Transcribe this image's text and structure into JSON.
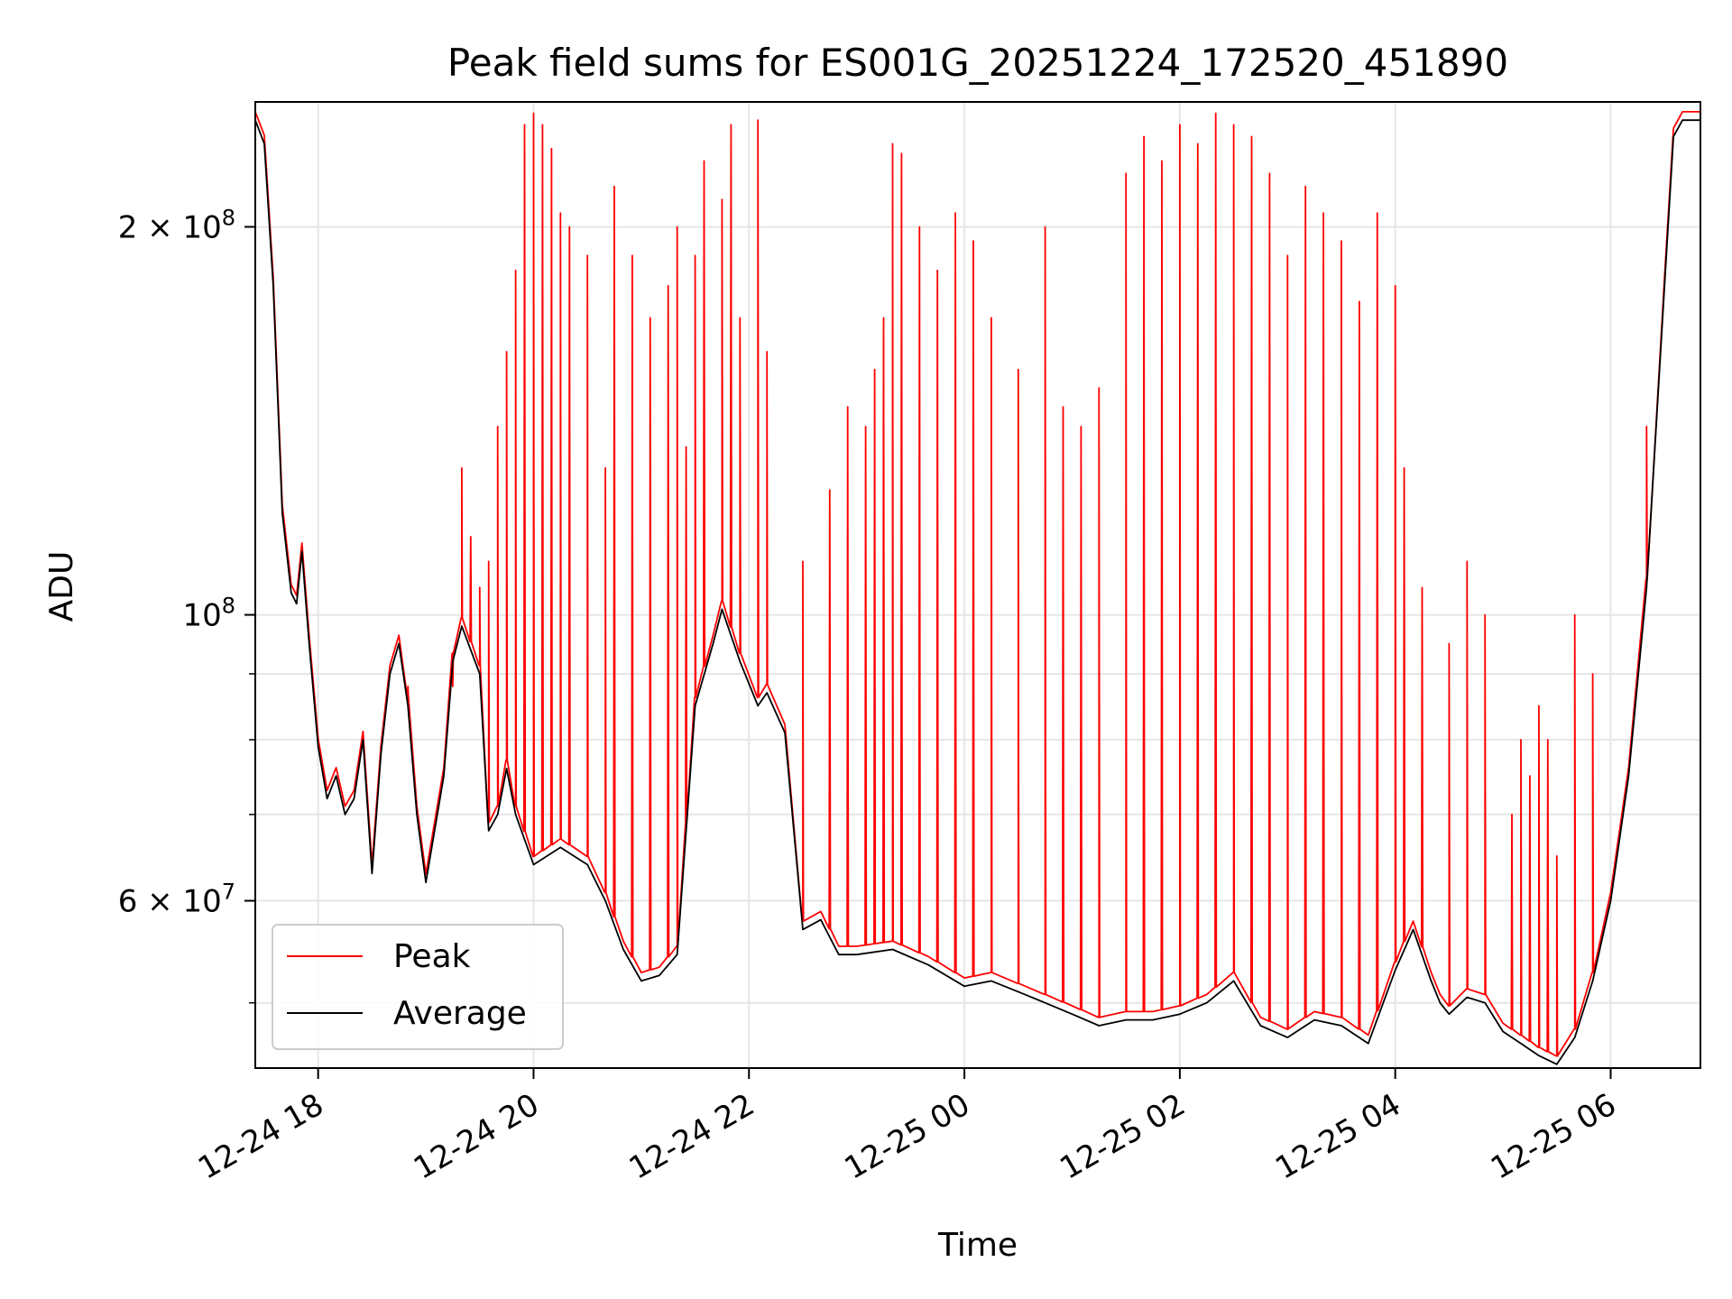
{
  "chart_data": {
    "type": "line",
    "title": "Peak field sums for ES001G_20251224_172520_451890",
    "xlabel": "Time",
    "ylabel": "ADU",
    "yscale": "log",
    "ylim": [
      44500000,
      250000000
    ],
    "xlim": [
      "2025-12-24 17:25",
      "2025-12-25 06:50"
    ],
    "grid": true,
    "legend_position": "lower-left",
    "x_ticks": [
      {
        "value": "2025-12-24 18:00",
        "label": "12-24 18"
      },
      {
        "value": "2025-12-24 20:00",
        "label": "12-24 20"
      },
      {
        "value": "2025-12-24 22:00",
        "label": "12-24 22"
      },
      {
        "value": "2025-12-25 00:00",
        "label": "12-25 00"
      },
      {
        "value": "2025-12-25 02:00",
        "label": "12-25 02"
      },
      {
        "value": "2025-12-25 04:00",
        "label": "12-25 04"
      },
      {
        "value": "2025-12-25 06:00",
        "label": "12-25 06"
      }
    ],
    "y_major_ticks": [
      {
        "value": 60000000,
        "base": "6 × 10",
        "exp": "7"
      },
      {
        "value": 100000000,
        "base": "10",
        "exp": "8"
      },
      {
        "value": 200000000,
        "base": "2 × 10",
        "exp": "8"
      }
    ],
    "y_minor_ticks": [
      50000000,
      70000000,
      80000000,
      90000000,
      300000000
    ],
    "series": [
      {
        "name": "Average",
        "color": "#000000",
        "x": [
          "2025-12-24 17:25",
          "2025-12-24 17:30",
          "2025-12-24 17:35",
          "2025-12-24 17:40",
          "2025-12-24 17:45",
          "2025-12-24 17:48",
          "2025-12-24 17:51",
          "2025-12-24 17:55",
          "2025-12-24 18:00",
          "2025-12-24 18:05",
          "2025-12-24 18:10",
          "2025-12-24 18:15",
          "2025-12-24 18:20",
          "2025-12-24 18:25",
          "2025-12-24 18:30",
          "2025-12-24 18:35",
          "2025-12-24 18:40",
          "2025-12-24 18:45",
          "2025-12-24 18:50",
          "2025-12-24 18:55",
          "2025-12-24 19:00",
          "2025-12-24 19:10",
          "2025-12-24 19:15",
          "2025-12-24 19:20",
          "2025-12-24 19:30",
          "2025-12-24 19:35",
          "2025-12-24 19:40",
          "2025-12-24 19:45",
          "2025-12-24 19:50",
          "2025-12-24 20:00",
          "2025-12-24 20:15",
          "2025-12-24 20:30",
          "2025-12-24 20:40",
          "2025-12-24 20:50",
          "2025-12-24 21:00",
          "2025-12-24 21:10",
          "2025-12-24 21:20",
          "2025-12-24 21:30",
          "2025-12-24 21:40",
          "2025-12-24 21:45",
          "2025-12-24 21:55",
          "2025-12-24 22:05",
          "2025-12-24 22:10",
          "2025-12-24 22:20",
          "2025-12-24 22:30",
          "2025-12-24 22:40",
          "2025-12-24 22:50",
          "2025-12-24 23:00",
          "2025-12-24 23:20",
          "2025-12-24 23:40",
          "2025-12-25 00:00",
          "2025-12-25 00:15",
          "2025-12-25 00:30",
          "2025-12-25 00:45",
          "2025-12-25 01:00",
          "2025-12-25 01:15",
          "2025-12-25 01:30",
          "2025-12-25 01:45",
          "2025-12-25 02:00",
          "2025-12-25 02:15",
          "2025-12-25 02:30",
          "2025-12-25 02:45",
          "2025-12-25 03:00",
          "2025-12-25 03:15",
          "2025-12-25 03:30",
          "2025-12-25 03:45",
          "2025-12-25 04:00",
          "2025-12-25 04:10",
          "2025-12-25 04:20",
          "2025-12-25 04:25",
          "2025-12-25 04:30",
          "2025-12-25 04:40",
          "2025-12-25 04:50",
          "2025-12-25 05:00",
          "2025-12-25 05:10",
          "2025-12-25 05:20",
          "2025-12-25 05:30",
          "2025-12-25 05:40",
          "2025-12-25 05:50",
          "2025-12-25 06:00",
          "2025-12-25 06:10",
          "2025-12-25 06:20",
          "2025-12-25 06:30",
          "2025-12-25 06:35",
          "2025-12-25 06:40",
          "2025-12-25 06:45",
          "2025-12-25 06:50"
        ],
        "values": [
          242000000,
          232000000,
          180000000,
          120000000,
          104000000,
          102000000,
          112000000,
          95000000,
          79000000,
          72000000,
          75000000,
          70000000,
          72000000,
          80000000,
          63000000,
          78000000,
          90000000,
          95000000,
          85000000,
          70000000,
          62000000,
          75000000,
          92000000,
          98000000,
          90000000,
          68000000,
          70000000,
          76000000,
          70000000,
          64000000,
          66000000,
          64000000,
          60000000,
          55000000,
          52000000,
          52500000,
          54500000,
          85000000,
          95000000,
          101000000,
          92000000,
          85000000,
          87000000,
          81000000,
          57000000,
          58000000,
          54500000,
          54500000,
          55000000,
          53500000,
          51500000,
          52000000,
          51000000,
          50000000,
          49000000,
          48000000,
          48500000,
          48500000,
          49000000,
          50000000,
          52000000,
          48000000,
          47000000,
          48500000,
          48000000,
          46500000,
          53000000,
          57000000,
          52000000,
          50000000,
          49000000,
          50500000,
          50000000,
          47500000,
          46500000,
          45500000,
          44800000,
          47000000,
          52000000,
          60000000,
          75000000,
          105000000,
          180000000,
          235000000,
          242000000,
          242000000,
          242000000
        ]
      },
      {
        "name": "Peak",
        "color": "#ff0000",
        "spikes": [
          {
            "t": "2025-12-24 18:50",
            "v": 88000000
          },
          {
            "t": "2025-12-24 19:15",
            "v": 88000000
          },
          {
            "t": "2025-12-24 19:20",
            "v": 130000000
          },
          {
            "t": "2025-12-24 19:25",
            "v": 115000000
          },
          {
            "t": "2025-12-24 19:30",
            "v": 105000000
          },
          {
            "t": "2025-12-24 19:35",
            "v": 110000000
          },
          {
            "t": "2025-12-24 19:40",
            "v": 140000000
          },
          {
            "t": "2025-12-24 19:45",
            "v": 160000000
          },
          {
            "t": "2025-12-24 19:50",
            "v": 185000000
          },
          {
            "t": "2025-12-24 19:55",
            "v": 240000000
          },
          {
            "t": "2025-12-24 20:00",
            "v": 245000000
          },
          {
            "t": "2025-12-24 20:05",
            "v": 240000000
          },
          {
            "t": "2025-12-24 20:10",
            "v": 230000000
          },
          {
            "t": "2025-12-24 20:15",
            "v": 205000000
          },
          {
            "t": "2025-12-24 20:20",
            "v": 200000000
          },
          {
            "t": "2025-12-24 20:30",
            "v": 190000000
          },
          {
            "t": "2025-12-24 20:40",
            "v": 130000000
          },
          {
            "t": "2025-12-24 20:45",
            "v": 215000000
          },
          {
            "t": "2025-12-24 20:55",
            "v": 190000000
          },
          {
            "t": "2025-12-24 21:05",
            "v": 170000000
          },
          {
            "t": "2025-12-24 21:15",
            "v": 180000000
          },
          {
            "t": "2025-12-24 21:20",
            "v": 200000000
          },
          {
            "t": "2025-12-24 21:25",
            "v": 135000000
          },
          {
            "t": "2025-12-24 21:30",
            "v": 190000000
          },
          {
            "t": "2025-12-24 21:35",
            "v": 225000000
          },
          {
            "t": "2025-12-24 21:45",
            "v": 210000000
          },
          {
            "t": "2025-12-24 21:50",
            "v": 240000000
          },
          {
            "t": "2025-12-24 21:55",
            "v": 170000000
          },
          {
            "t": "2025-12-24 22:05",
            "v": 242000000
          },
          {
            "t": "2025-12-24 22:10",
            "v": 160000000
          },
          {
            "t": "2025-12-24 22:30",
            "v": 110000000
          },
          {
            "t": "2025-12-24 22:45",
            "v": 125000000
          },
          {
            "t": "2025-12-24 22:55",
            "v": 145000000
          },
          {
            "t": "2025-12-24 23:05",
            "v": 140000000
          },
          {
            "t": "2025-12-24 23:10",
            "v": 155000000
          },
          {
            "t": "2025-12-24 23:15",
            "v": 170000000
          },
          {
            "t": "2025-12-24 23:20",
            "v": 232000000
          },
          {
            "t": "2025-12-24 23:25",
            "v": 228000000
          },
          {
            "t": "2025-12-24 23:35",
            "v": 200000000
          },
          {
            "t": "2025-12-24 23:45",
            "v": 185000000
          },
          {
            "t": "2025-12-24 23:55",
            "v": 205000000
          },
          {
            "t": "2025-12-25 00:05",
            "v": 195000000
          },
          {
            "t": "2025-12-25 00:15",
            "v": 170000000
          },
          {
            "t": "2025-12-25 00:30",
            "v": 155000000
          },
          {
            "t": "2025-12-25 00:45",
            "v": 200000000
          },
          {
            "t": "2025-12-25 00:55",
            "v": 145000000
          },
          {
            "t": "2025-12-25 01:05",
            "v": 140000000
          },
          {
            "t": "2025-12-25 01:15",
            "v": 150000000
          },
          {
            "t": "2025-12-25 01:30",
            "v": 220000000
          },
          {
            "t": "2025-12-25 01:40",
            "v": 235000000
          },
          {
            "t": "2025-12-25 01:50",
            "v": 225000000
          },
          {
            "t": "2025-12-25 02:00",
            "v": 240000000
          },
          {
            "t": "2025-12-25 02:10",
            "v": 232000000
          },
          {
            "t": "2025-12-25 02:20",
            "v": 245000000
          },
          {
            "t": "2025-12-25 02:30",
            "v": 240000000
          },
          {
            "t": "2025-12-25 02:40",
            "v": 235000000
          },
          {
            "t": "2025-12-25 02:50",
            "v": 220000000
          },
          {
            "t": "2025-12-25 03:00",
            "v": 190000000
          },
          {
            "t": "2025-12-25 03:10",
            "v": 215000000
          },
          {
            "t": "2025-12-25 03:20",
            "v": 205000000
          },
          {
            "t": "2025-12-25 03:30",
            "v": 195000000
          },
          {
            "t": "2025-12-25 03:40",
            "v": 175000000
          },
          {
            "t": "2025-12-25 03:50",
            "v": 205000000
          },
          {
            "t": "2025-12-25 04:00",
            "v": 180000000
          },
          {
            "t": "2025-12-25 04:05",
            "v": 130000000
          },
          {
            "t": "2025-12-25 04:15",
            "v": 105000000
          },
          {
            "t": "2025-12-25 04:30",
            "v": 95000000
          },
          {
            "t": "2025-12-25 04:40",
            "v": 110000000
          },
          {
            "t": "2025-12-25 04:50",
            "v": 100000000
          },
          {
            "t": "2025-12-25 05:05",
            "v": 70000000
          },
          {
            "t": "2025-12-25 05:10",
            "v": 80000000
          },
          {
            "t": "2025-12-25 05:15",
            "v": 75000000
          },
          {
            "t": "2025-12-25 05:20",
            "v": 85000000
          },
          {
            "t": "2025-12-25 05:25",
            "v": 80000000
          },
          {
            "t": "2025-12-25 05:30",
            "v": 65000000
          },
          {
            "t": "2025-12-25 05:40",
            "v": 100000000
          },
          {
            "t": "2025-12-25 05:50",
            "v": 90000000
          },
          {
            "t": "2025-12-25 06:20",
            "v": 140000000
          }
        ]
      }
    ]
  }
}
